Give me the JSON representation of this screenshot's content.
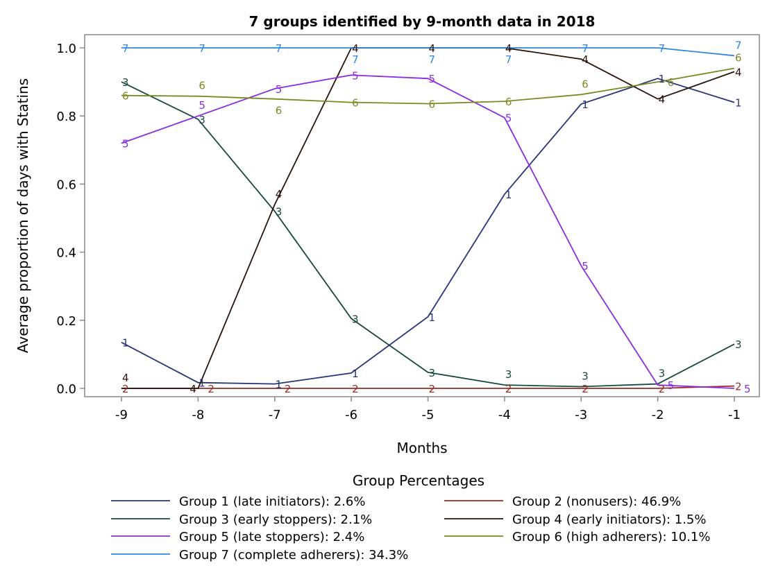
{
  "chart_data": {
    "type": "line",
    "title": "7 groups identified by 9-month data in 2018",
    "xlabel": "Months",
    "ylabel": "Average proportion of days with Statins",
    "x": [
      -9,
      -8,
      -7,
      -6,
      -5,
      -4,
      -3,
      -2,
      -1
    ],
    "x_tick_labels": [
      "-9",
      "-8",
      "-7",
      "-6",
      "-5",
      "-4",
      "-3",
      "-2",
      "-1"
    ],
    "ylim": [
      0,
      1
    ],
    "y_ticks": [
      0,
      0.2,
      0.4,
      0.6,
      0.8,
      1.0
    ],
    "y_tick_labels": [
      "0.0",
      "0.2",
      "0.4",
      "0.6",
      "0.8",
      "1.0"
    ],
    "grid": false,
    "legend_title": "Group Percentages",
    "legend_position": "bottom",
    "series": [
      {
        "name": "Group 1 (late initiators): 2.6%",
        "marker": "1",
        "color": "#27347a",
        "values": [
          0.135,
          0.017,
          0.013,
          0.045,
          0.21,
          0.57,
          0.835,
          0.91,
          0.84
        ]
      },
      {
        "name": "Group 2 (nonusers): 46.9%",
        "marker": "2",
        "color": "#9b2a24",
        "values": [
          0,
          0,
          0,
          0,
          0,
          0,
          0,
          0,
          0.007
        ]
      },
      {
        "name": "Group 3 (early stoppers): 2.1%",
        "marker": "3",
        "color": "#15483f",
        "values": [
          0.9,
          0.79,
          0.52,
          0.205,
          0.047,
          0.01,
          0.005,
          0.013,
          0.13
        ]
      },
      {
        "name": "Group 4 (early initiators): 1.5%",
        "marker": "4",
        "color": "#2a1208",
        "values": [
          0,
          0,
          0.54,
          1.0,
          1.0,
          1.0,
          0.967,
          0.85,
          0.93
        ]
      },
      {
        "name": "Group 5 (late stoppers): 2.4%",
        "marker": "5",
        "color": "#8a2be2",
        "values": [
          0.72,
          0.8,
          0.88,
          0.92,
          0.91,
          0.795,
          0.36,
          0.01,
          0.0
        ]
      },
      {
        "name": "Group 6 (high adherers): 10.1%",
        "marker": "6",
        "color": "#7a8a22",
        "values": [
          0.86,
          0.858,
          0.85,
          0.84,
          0.836,
          0.843,
          0.863,
          0.9,
          0.94
        ]
      },
      {
        "name": "Group 7 (complete adherers): 34.3%",
        "marker": "7",
        "color": "#2f86e0",
        "values": [
          1.0,
          1.0,
          1.0,
          1.0,
          1.0,
          1.0,
          1.0,
          1.0,
          0.977
        ]
      }
    ]
  }
}
